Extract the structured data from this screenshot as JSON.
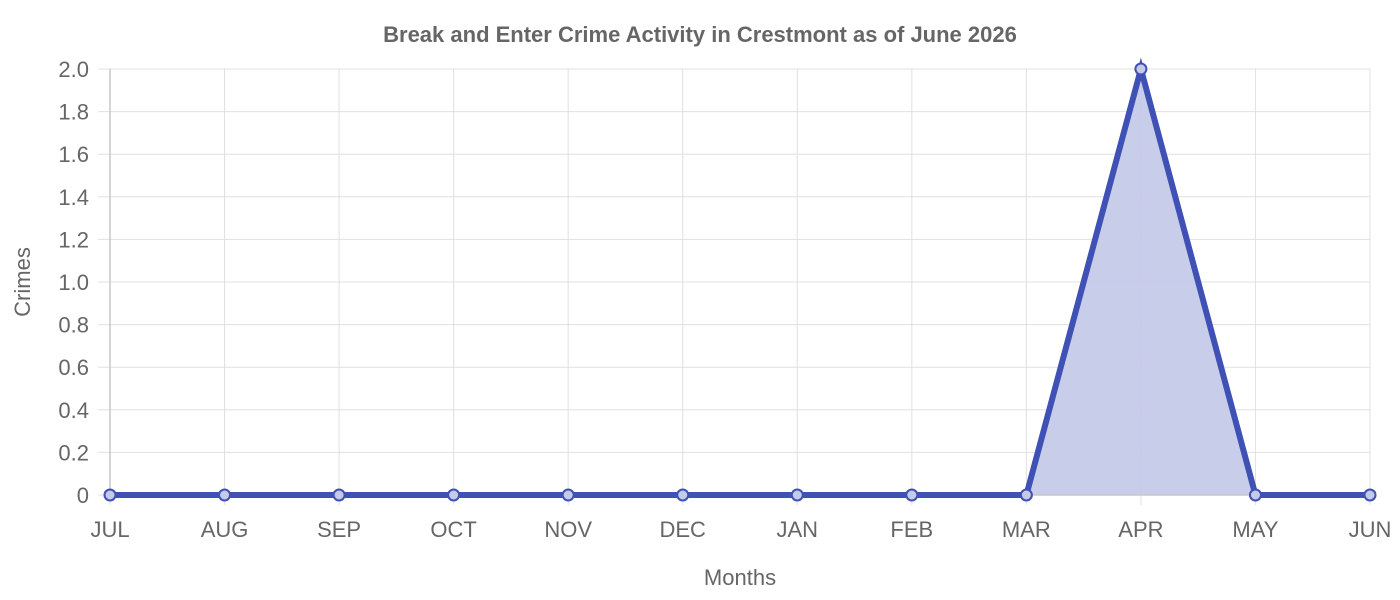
{
  "chart_data": {
    "type": "area",
    "title": "Break and Enter Crime Activity in Crestmont as of June 2026",
    "xlabel": "Months",
    "ylabel": "Crimes",
    "categories": [
      "JUL",
      "AUG",
      "SEP",
      "OCT",
      "NOV",
      "DEC",
      "JAN",
      "FEB",
      "MAR",
      "APR",
      "MAY",
      "JUN"
    ],
    "series": [
      {
        "values": [
          0,
          0,
          0,
          0,
          0,
          0,
          0,
          0,
          0,
          2,
          0,
          0
        ]
      }
    ],
    "ylim": [
      0,
      2.0
    ],
    "yticks": [
      "0",
      "0.2",
      "0.4",
      "0.6",
      "0.8",
      "1.0",
      "1.2",
      "1.4",
      "1.6",
      "1.8",
      "2.0"
    ],
    "grid": true,
    "colors": {
      "line": "#3f51b5",
      "fill": "#c5cae9",
      "text": "#666666"
    }
  }
}
